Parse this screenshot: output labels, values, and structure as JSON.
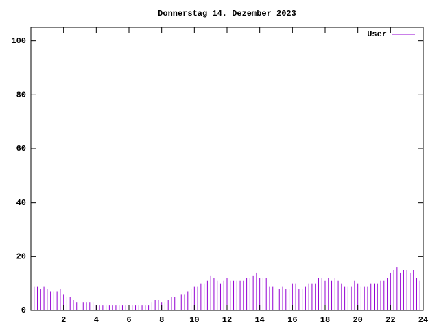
{
  "chart_data": {
    "type": "impulse",
    "title": "Donnerstag 14. Dezember 2023",
    "x": [
      0,
      0.2,
      0.4,
      0.6,
      0.8,
      1,
      1.2,
      1.4,
      1.6,
      1.8,
      2,
      2.2,
      2.4,
      2.6,
      2.8,
      3,
      3.2,
      3.4,
      3.6,
      3.8,
      4,
      4.2,
      4.4,
      4.6,
      4.8,
      5,
      5.2,
      5.4,
      5.6,
      5.8,
      6,
      6.2,
      6.4,
      6.6,
      6.8,
      7,
      7.2,
      7.4,
      7.6,
      7.8,
      8,
      8.2,
      8.4,
      8.6,
      8.8,
      9,
      9.2,
      9.4,
      9.6,
      9.8,
      10,
      10.2,
      10.4,
      10.6,
      10.8,
      11,
      11.2,
      11.4,
      11.6,
      11.8,
      12,
      12.2,
      12.4,
      12.6,
      12.8,
      13,
      13.2,
      13.4,
      13.6,
      13.8,
      14,
      14.2,
      14.4,
      14.6,
      14.8,
      15,
      15.2,
      15.4,
      15.6,
      15.8,
      16,
      16.2,
      16.4,
      16.6,
      16.8,
      17,
      17.2,
      17.4,
      17.6,
      17.8,
      18,
      18.2,
      18.4,
      18.6,
      18.8,
      19,
      19.2,
      19.4,
      19.6,
      19.8,
      20,
      20.2,
      20.4,
      20.6,
      20.8,
      21,
      21.2,
      21.4,
      21.6,
      21.8,
      22,
      22.2,
      22.4,
      22.6,
      22.8,
      23,
      23.2,
      23.4,
      23.6,
      23.8
    ],
    "series": [
      {
        "name": "User",
        "color": "#9400d3",
        "values": [
          10,
          9,
          9,
          8,
          9,
          8,
          7,
          7,
          7,
          8,
          6,
          5,
          5,
          4,
          3,
          3,
          3,
          3,
          3,
          3,
          2,
          2,
          2,
          2,
          2,
          2,
          2,
          2,
          2,
          2,
          2,
          2,
          2,
          2,
          2,
          2,
          2,
          3,
          4,
          4,
          3,
          3,
          4,
          5,
          5,
          6,
          6,
          6,
          7,
          8,
          9,
          9,
          10,
          10,
          11,
          13,
          12,
          11,
          10,
          11,
          12,
          11,
          11,
          11,
          11,
          11,
          12,
          12,
          13,
          14,
          12,
          12,
          12,
          9,
          9,
          8,
          8,
          9,
          8,
          8,
          10,
          10,
          8,
          8,
          9,
          10,
          10,
          10,
          12,
          12,
          11,
          12,
          11,
          12,
          11,
          10,
          9,
          9,
          9,
          11,
          10,
          9,
          9,
          9,
          10,
          10,
          10,
          11,
          11,
          12,
          14,
          15,
          16,
          14,
          15,
          15,
          14,
          15,
          12,
          11
        ]
      }
    ],
    "xlim": [
      0,
      24
    ],
    "xticks": [
      2,
      4,
      6,
      8,
      10,
      12,
      14,
      16,
      18,
      20,
      22,
      24
    ],
    "ylim": [
      0,
      105
    ],
    "yticks": [
      0,
      20,
      40,
      60,
      80,
      100
    ],
    "legend": "top-right",
    "grid": false
  }
}
